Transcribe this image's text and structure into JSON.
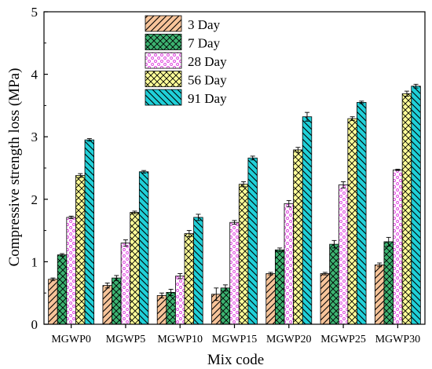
{
  "chart_data": {
    "type": "bar",
    "title": "",
    "xlabel": "Mix code",
    "ylabel": "Compressive strength loss (MPa)",
    "ylim": [
      0,
      5
    ],
    "yticks": [
      "0",
      "1",
      "2",
      "3",
      "4",
      "5"
    ],
    "grid": false,
    "legend_position": "top-left",
    "categories": [
      "MGWP0",
      "MGWP5",
      "MGWP10",
      "MGWP15",
      "MGWP20",
      "MGWP25",
      "MGWP30"
    ],
    "series": [
      {
        "name": "3 Day",
        "values": [
          0.72,
          0.62,
          0.46,
          0.48,
          0.81,
          0.81,
          0.95
        ],
        "errors": [
          0.02,
          0.04,
          0.04,
          0.1,
          0.02,
          0.02,
          0.03
        ],
        "fill": "#f7c49a",
        "hatch": "diag-right",
        "hatch_color": "#000000"
      },
      {
        "name": "7 Day",
        "values": [
          1.11,
          0.74,
          0.51,
          0.58,
          1.19,
          1.28,
          1.32
        ],
        "errors": [
          0.02,
          0.04,
          0.05,
          0.05,
          0.03,
          0.06,
          0.07
        ],
        "fill": "#3cb371",
        "hatch": "crosshatch",
        "hatch_color": "#000000"
      },
      {
        "name": "28 Day",
        "values": [
          1.71,
          1.3,
          0.77,
          1.63,
          1.93,
          2.23,
          2.47
        ],
        "errors": [
          0.02,
          0.05,
          0.04,
          0.03,
          0.05,
          0.05,
          0.01
        ],
        "fill": "#ffffff",
        "hatch": "dots",
        "hatch_color": "#e040e0"
      },
      {
        "name": "56 Day",
        "values": [
          2.38,
          1.79,
          1.45,
          2.24,
          2.79,
          3.29,
          3.69
        ],
        "errors": [
          0.03,
          0.02,
          0.05,
          0.04,
          0.04,
          0.03,
          0.04
        ],
        "fill": "#ffff99",
        "hatch": "crosshatch",
        "hatch_color": "#000000"
      },
      {
        "name": "91 Day",
        "values": [
          2.95,
          2.44,
          1.71,
          2.66,
          3.32,
          3.55,
          3.81
        ],
        "errors": [
          0.02,
          0.02,
          0.05,
          0.03,
          0.07,
          0.02,
          0.03
        ],
        "fill": "#20d0d8",
        "hatch": "diag-left",
        "hatch_color": "#000000"
      }
    ]
  }
}
